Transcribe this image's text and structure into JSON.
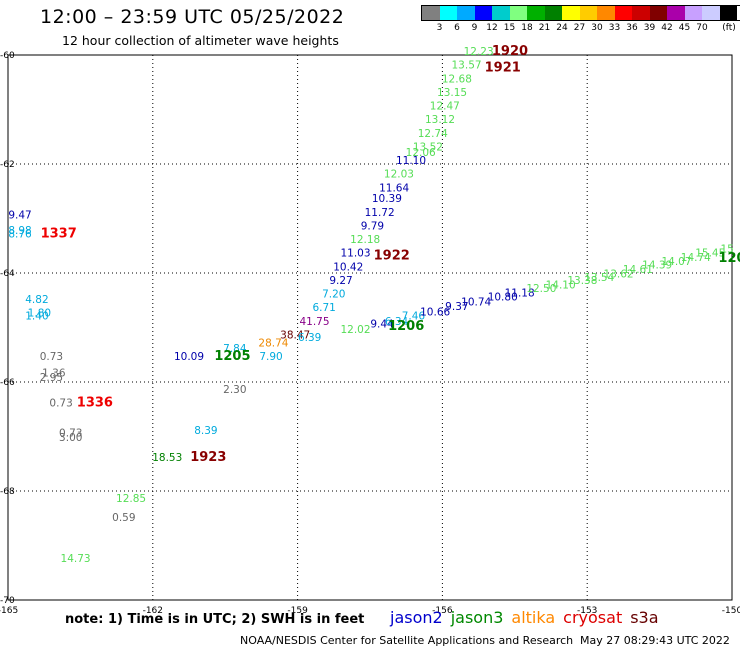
{
  "header": {
    "title": "12:00 – 23:59 UTC 05/25/2022",
    "subtitle": "12 hour collection of altimeter wave heights"
  },
  "legend": {
    "colors": [
      "#808080",
      "#00ffff",
      "#00aaff",
      "#0000ff",
      "#00cccc",
      "#80ff80",
      "#00b000",
      "#008000",
      "#ffff00",
      "#ffcc00",
      "#ff8800",
      "#ff0000",
      "#cc0000",
      "#800000",
      "#aa00aa",
      "#c8a0ff",
      "#ccccff",
      "#000000"
    ],
    "labels": [
      "3",
      "6",
      "9",
      "12",
      "15",
      "18",
      "21",
      "24",
      "27",
      "30",
      "33",
      "36",
      "39",
      "42",
      "45",
      "70"
    ],
    "unit": "(ft)"
  },
  "axes": {
    "lat_labels": [
      "-60",
      "-62",
      "-64",
      "-66",
      "-68",
      "-70"
    ],
    "lon_labels": [
      "-165",
      "-162",
      "-159",
      "-156",
      "-153",
      "-150"
    ]
  },
  "annotations": [
    {
      "text": "12.23",
      "lon": -155.25,
      "lat": -60.0,
      "color": "#55dd55"
    },
    {
      "text": "13.57",
      "lon": -155.5,
      "lat": -60.25,
      "color": "#55dd55"
    },
    {
      "text": "12.68",
      "lon": -155.7,
      "lat": -60.5,
      "color": "#55dd55"
    },
    {
      "text": "13.15",
      "lon": -155.8,
      "lat": -60.75,
      "color": "#55dd55"
    },
    {
      "text": "12.47",
      "lon": -155.95,
      "lat": -61.0,
      "color": "#55dd55"
    },
    {
      "text": "13.12",
      "lon": -156.05,
      "lat": -61.25,
      "color": "#55dd55"
    },
    {
      "text": "12.74",
      "lon": -156.2,
      "lat": -61.5,
      "color": "#55dd55"
    },
    {
      "text": "13.52",
      "lon": -156.3,
      "lat": -61.75,
      "color": "#55dd55"
    },
    {
      "text": "12.06",
      "lon": -156.45,
      "lat": -61.85,
      "color": "#55dd55"
    },
    {
      "text": "11.10",
      "lon": -156.65,
      "lat": -62.0,
      "color": "#0000aa"
    },
    {
      "text": "12.03",
      "lon": -156.9,
      "lat": -62.25,
      "color": "#55dd55"
    },
    {
      "text": "11.64",
      "lon": -157.0,
      "lat": -62.5,
      "color": "#0000aa"
    },
    {
      "text": "10.39",
      "lon": -157.15,
      "lat": -62.7,
      "color": "#0000aa"
    },
    {
      "text": "11.72",
      "lon": -157.3,
      "lat": -62.95,
      "color": "#0000aa"
    },
    {
      "text": "9.79",
      "lon": -157.45,
      "lat": -63.2,
      "color": "#0000aa"
    },
    {
      "text": "12.18",
      "lon": -157.6,
      "lat": -63.45,
      "color": "#55dd55"
    },
    {
      "text": "11.03",
      "lon": -157.8,
      "lat": -63.7,
      "color": "#0000aa"
    },
    {
      "text": "10.42",
      "lon": -157.95,
      "lat": -63.95,
      "color": "#0000aa"
    },
    {
      "text": "9.27",
      "lon": -158.1,
      "lat": -64.2,
      "color": "#0000aa"
    },
    {
      "text": "7.20",
      "lon": -158.25,
      "lat": -64.45,
      "color": "#00aadd"
    },
    {
      "text": "6.71",
      "lon": -158.45,
      "lat": -64.7,
      "color": "#00aadd"
    },
    {
      "text": "41.75",
      "lon": -158.65,
      "lat": -64.95,
      "color": "#880088"
    },
    {
      "text": "38.47",
      "lon": -159.05,
      "lat": -65.2,
      "color": "#660000"
    },
    {
      "text": "28.74",
      "lon": -159.5,
      "lat": -65.35,
      "color": "#ee8800"
    },
    {
      "text": "6.39",
      "lon": -158.75,
      "lat": -65.25,
      "color": "#00aadd"
    },
    {
      "text": "7.90",
      "lon": -159.55,
      "lat": -65.6,
      "color": "#00aadd"
    },
    {
      "text": "7.84",
      "lon": -160.3,
      "lat": -65.45,
      "color": "#00aadd"
    },
    {
      "text": "10.09",
      "lon": -161.25,
      "lat": -65.6,
      "color": "#0000aa"
    },
    {
      "text": "12.02",
      "lon": -157.8,
      "lat": -65.1,
      "color": "#55dd55"
    },
    {
      "text": "9.44",
      "lon": -157.25,
      "lat": -65.0,
      "color": "#0000aa"
    },
    {
      "text": "6.34",
      "lon": -156.95,
      "lat": -64.95,
      "color": "#00aadd"
    },
    {
      "text": "7.46",
      "lon": -156.6,
      "lat": -64.85,
      "color": "#00aadd"
    },
    {
      "text": "10.66",
      "lon": -156.15,
      "lat": -64.78,
      "color": "#0000aa"
    },
    {
      "text": "9.37",
      "lon": -155.7,
      "lat": -64.68,
      "color": "#0000aa"
    },
    {
      "text": "10.74",
      "lon": -155.3,
      "lat": -64.6,
      "color": "#0000aa"
    },
    {
      "text": "10.80",
      "lon": -154.75,
      "lat": -64.5,
      "color": "#0000aa"
    },
    {
      "text": "11.18",
      "lon": -154.4,
      "lat": -64.43,
      "color": "#0000aa"
    },
    {
      "text": "12.50",
      "lon": -153.95,
      "lat": -64.35,
      "color": "#55dd55"
    },
    {
      "text": "14.10",
      "lon": -153.55,
      "lat": -64.28,
      "color": "#55dd55"
    },
    {
      "text": "13.38",
      "lon": -153.1,
      "lat": -64.2,
      "color": "#55dd55"
    },
    {
      "text": "13.54",
      "lon": -152.75,
      "lat": -64.15,
      "color": "#55dd55"
    },
    {
      "text": "13.62",
      "lon": -152.35,
      "lat": -64.08,
      "color": "#55dd55"
    },
    {
      "text": "14.61",
      "lon": -151.95,
      "lat": -64.0,
      "color": "#55dd55"
    },
    {
      "text": "14.39",
      "lon": -151.55,
      "lat": -63.92,
      "color": "#55dd55"
    },
    {
      "text": "14.07",
      "lon": -151.15,
      "lat": -63.85,
      "color": "#55dd55"
    },
    {
      "text": "14.74",
      "lon": -150.75,
      "lat": -63.78,
      "color": "#55dd55"
    },
    {
      "text": "15.45",
      "lon": -150.45,
      "lat": -63.7,
      "color": "#55dd55"
    },
    {
      "text": "15",
      "lon": -150.1,
      "lat": -63.62,
      "color": "#55dd55"
    },
    {
      "text": "9.47",
      "lon": -164.75,
      "lat": -63.0,
      "color": "#0000aa"
    },
    {
      "text": "8.98",
      "lon": -164.75,
      "lat": -63.28,
      "color": "#00aadd"
    },
    {
      "text": "8.76",
      "lon": -164.75,
      "lat": -63.35,
      "color": "#00aadd"
    },
    {
      "text": "4.82",
      "lon": -164.4,
      "lat": -64.55,
      "color": "#00aadd"
    },
    {
      "text": "1.80",
      "lon": -164.35,
      "lat": -64.8,
      "color": "#00aadd"
    },
    {
      "text": "1.40",
      "lon": -164.4,
      "lat": -64.85,
      "color": "#00aadd"
    },
    {
      "text": "0.73",
      "lon": -164.1,
      "lat": -65.6,
      "color": "#666666"
    },
    {
      "text": "1.36",
      "lon": -164.05,
      "lat": -65.9,
      "color": "#666666"
    },
    {
      "text": "2.95",
      "lon": -164.1,
      "lat": -65.98,
      "color": "#666666"
    },
    {
      "text": "0.73",
      "lon": -163.9,
      "lat": -66.45,
      "color": "#666666"
    },
    {
      "text": "0.73",
      "lon": -163.7,
      "lat": -67.0,
      "color": "#666666"
    },
    {
      "text": "3.00",
      "lon": -163.7,
      "lat": -67.08,
      "color": "#666666"
    },
    {
      "text": "2.30",
      "lon": -160.3,
      "lat": -66.2,
      "color": "#666666"
    },
    {
      "text": "8.39",
      "lon": -160.9,
      "lat": -66.95,
      "color": "#00aadd"
    },
    {
      "text": "18.53",
      "lon": -161.7,
      "lat": -67.45,
      "color": "#008000"
    },
    {
      "text": "12.85",
      "lon": -162.45,
      "lat": -68.2,
      "color": "#55dd55"
    },
    {
      "text": "0.59",
      "lon": -162.6,
      "lat": -68.55,
      "color": "#666666"
    },
    {
      "text": "14.73",
      "lon": -163.6,
      "lat": -69.3,
      "color": "#55dd55"
    }
  ],
  "time_labels": [
    {
      "text": "1920",
      "lon": -154.6,
      "lat": -60.0,
      "color": "#880000"
    },
    {
      "text": "1921",
      "lon": -154.75,
      "lat": -60.3,
      "color": "#880000"
    },
    {
      "text": "1922",
      "lon": -157.05,
      "lat": -63.75,
      "color": "#880000"
    },
    {
      "text": "1337",
      "lon": -163.95,
      "lat": -63.35,
      "color": "#ee0000"
    },
    {
      "text": "1336",
      "lon": -163.2,
      "lat": -66.45,
      "color": "#ee0000"
    },
    {
      "text": "1923",
      "lon": -160.85,
      "lat": -67.45,
      "color": "#880000"
    },
    {
      "text": "1205",
      "lon": -160.35,
      "lat": -65.6,
      "color": "#008000"
    },
    {
      "text": "1206",
      "lon": -156.75,
      "lat": -65.05,
      "color": "#008000"
    },
    {
      "text": "120",
      "lon": -150.0,
      "lat": -63.8,
      "color": "#008000"
    }
  ],
  "note": "note: 1) Time is in UTC; 2) SWH is in feet",
  "satellites": [
    {
      "name": "jason2",
      "color": "#0000cc"
    },
    {
      "name": "jason3",
      "color": "#008800"
    },
    {
      "name": "altika",
      "color": "#ff8800"
    },
    {
      "name": "cryosat",
      "color": "#dd0000"
    },
    {
      "name": "s3a",
      "color": "#660000"
    }
  ],
  "footer": {
    "left": "NOAA/NESDIS Center for Satellite Applications and Research",
    "right": "May 27 08:29:43 UTC 2022"
  }
}
